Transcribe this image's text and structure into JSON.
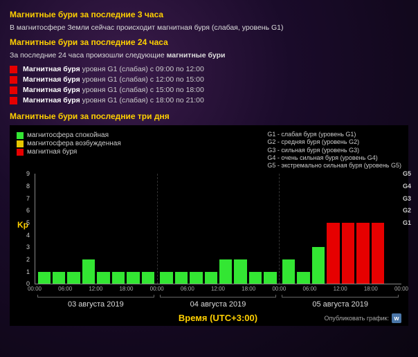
{
  "headings": {
    "h3": "Магнитные бури за последние 3 часа",
    "h3_sub": "В магнитосфере Земли сейчас происходит магнитная буря (слабая, уровень G1)",
    "h24": "Магнитные бури за последние 24 часа",
    "h24_sub_prefix": "За последние 24 часа произошли следующие ",
    "h24_sub_bold": "магнитные бури",
    "h3d": "Магнитные бури за последние три дня"
  },
  "storm_color": "#e60000",
  "storms": [
    {
      "bold": "Магнитная буря",
      "rest": " уровня G1 (слабая) с 09:00 по 12:00"
    },
    {
      "bold": "Магнитная буря",
      "rest": " уровня G1 (слабая) с 12:00 по 15:00"
    },
    {
      "bold": "Магнитная буря",
      "rest": " уровня G1 (слабая) с 15:00 по 18:00"
    },
    {
      "bold": "Магнитная буря",
      "rest": " уровня G1 (слабая) с 18:00 по 21:00"
    }
  ],
  "legend_left": [
    {
      "color": "#33e633",
      "label": "магнитосфера спокойная"
    },
    {
      "color": "#e6c700",
      "label": "магнитосфера возбужденная"
    },
    {
      "color": "#e60000",
      "label": "магнитная буря"
    }
  ],
  "legend_right": [
    "G1 - слабая буря (уровень G1)",
    "G2 - средняя буря (уровень G2)",
    "G3 - сильная буря (уровень G3)",
    "G4 - очень сильная буря (уровень G4)",
    "G5 - экстремально сильная буря (уровень G5)"
  ],
  "chart": {
    "type": "bar",
    "ylabel": "Kp",
    "ymax": 9,
    "yticks": [
      0,
      1,
      2,
      3,
      4,
      5,
      6,
      7,
      8,
      9
    ],
    "g_levels": [
      {
        "v": 5,
        "label": "G1"
      },
      {
        "v": 6,
        "label": "G2"
      },
      {
        "v": 7,
        "label": "G3"
      },
      {
        "v": 8,
        "label": "G4"
      },
      {
        "v": 9,
        "label": "G5"
      }
    ],
    "colors": {
      "calm": "#33e633",
      "storm": "#e60000",
      "excited": "#e6c700",
      "bg": "#000000",
      "axis": "#888888",
      "text": "#cccccc"
    },
    "xticks": [
      "00:00",
      "06:00",
      "12:00",
      "18:00",
      "00:00",
      "06:00",
      "12:00",
      "18:00",
      "00:00",
      "06:00",
      "12:00",
      "18:00",
      "00:00"
    ],
    "days": [
      {
        "label": "03 августа 2019",
        "bars": [
          {
            "v": 1,
            "c": "calm"
          },
          {
            "v": 1,
            "c": "calm"
          },
          {
            "v": 1,
            "c": "calm"
          },
          {
            "v": 2,
            "c": "calm"
          },
          {
            "v": 1,
            "c": "calm"
          },
          {
            "v": 1,
            "c": "calm"
          },
          {
            "v": 1,
            "c": "calm"
          },
          {
            "v": 1,
            "c": "calm"
          }
        ]
      },
      {
        "label": "04 августа 2019",
        "bars": [
          {
            "v": 1,
            "c": "calm"
          },
          {
            "v": 1,
            "c": "calm"
          },
          {
            "v": 1,
            "c": "calm"
          },
          {
            "v": 1,
            "c": "calm"
          },
          {
            "v": 2,
            "c": "calm"
          },
          {
            "v": 2,
            "c": "calm"
          },
          {
            "v": 1,
            "c": "calm"
          },
          {
            "v": 1,
            "c": "calm"
          }
        ]
      },
      {
        "label": "05 августа 2019",
        "bars": [
          {
            "v": 2,
            "c": "calm"
          },
          {
            "v": 1,
            "c": "calm"
          },
          {
            "v": 3,
            "c": "calm"
          },
          {
            "v": 5,
            "c": "storm"
          },
          {
            "v": 5,
            "c": "storm"
          },
          {
            "v": 5,
            "c": "storm"
          },
          {
            "v": 5,
            "c": "storm"
          },
          {
            "v": 0,
            "c": "calm"
          }
        ]
      }
    ],
    "xaxis_title": "Время (UTC+3:00)"
  },
  "publish": {
    "label": "Опубликовать график:",
    "vk": "w"
  }
}
